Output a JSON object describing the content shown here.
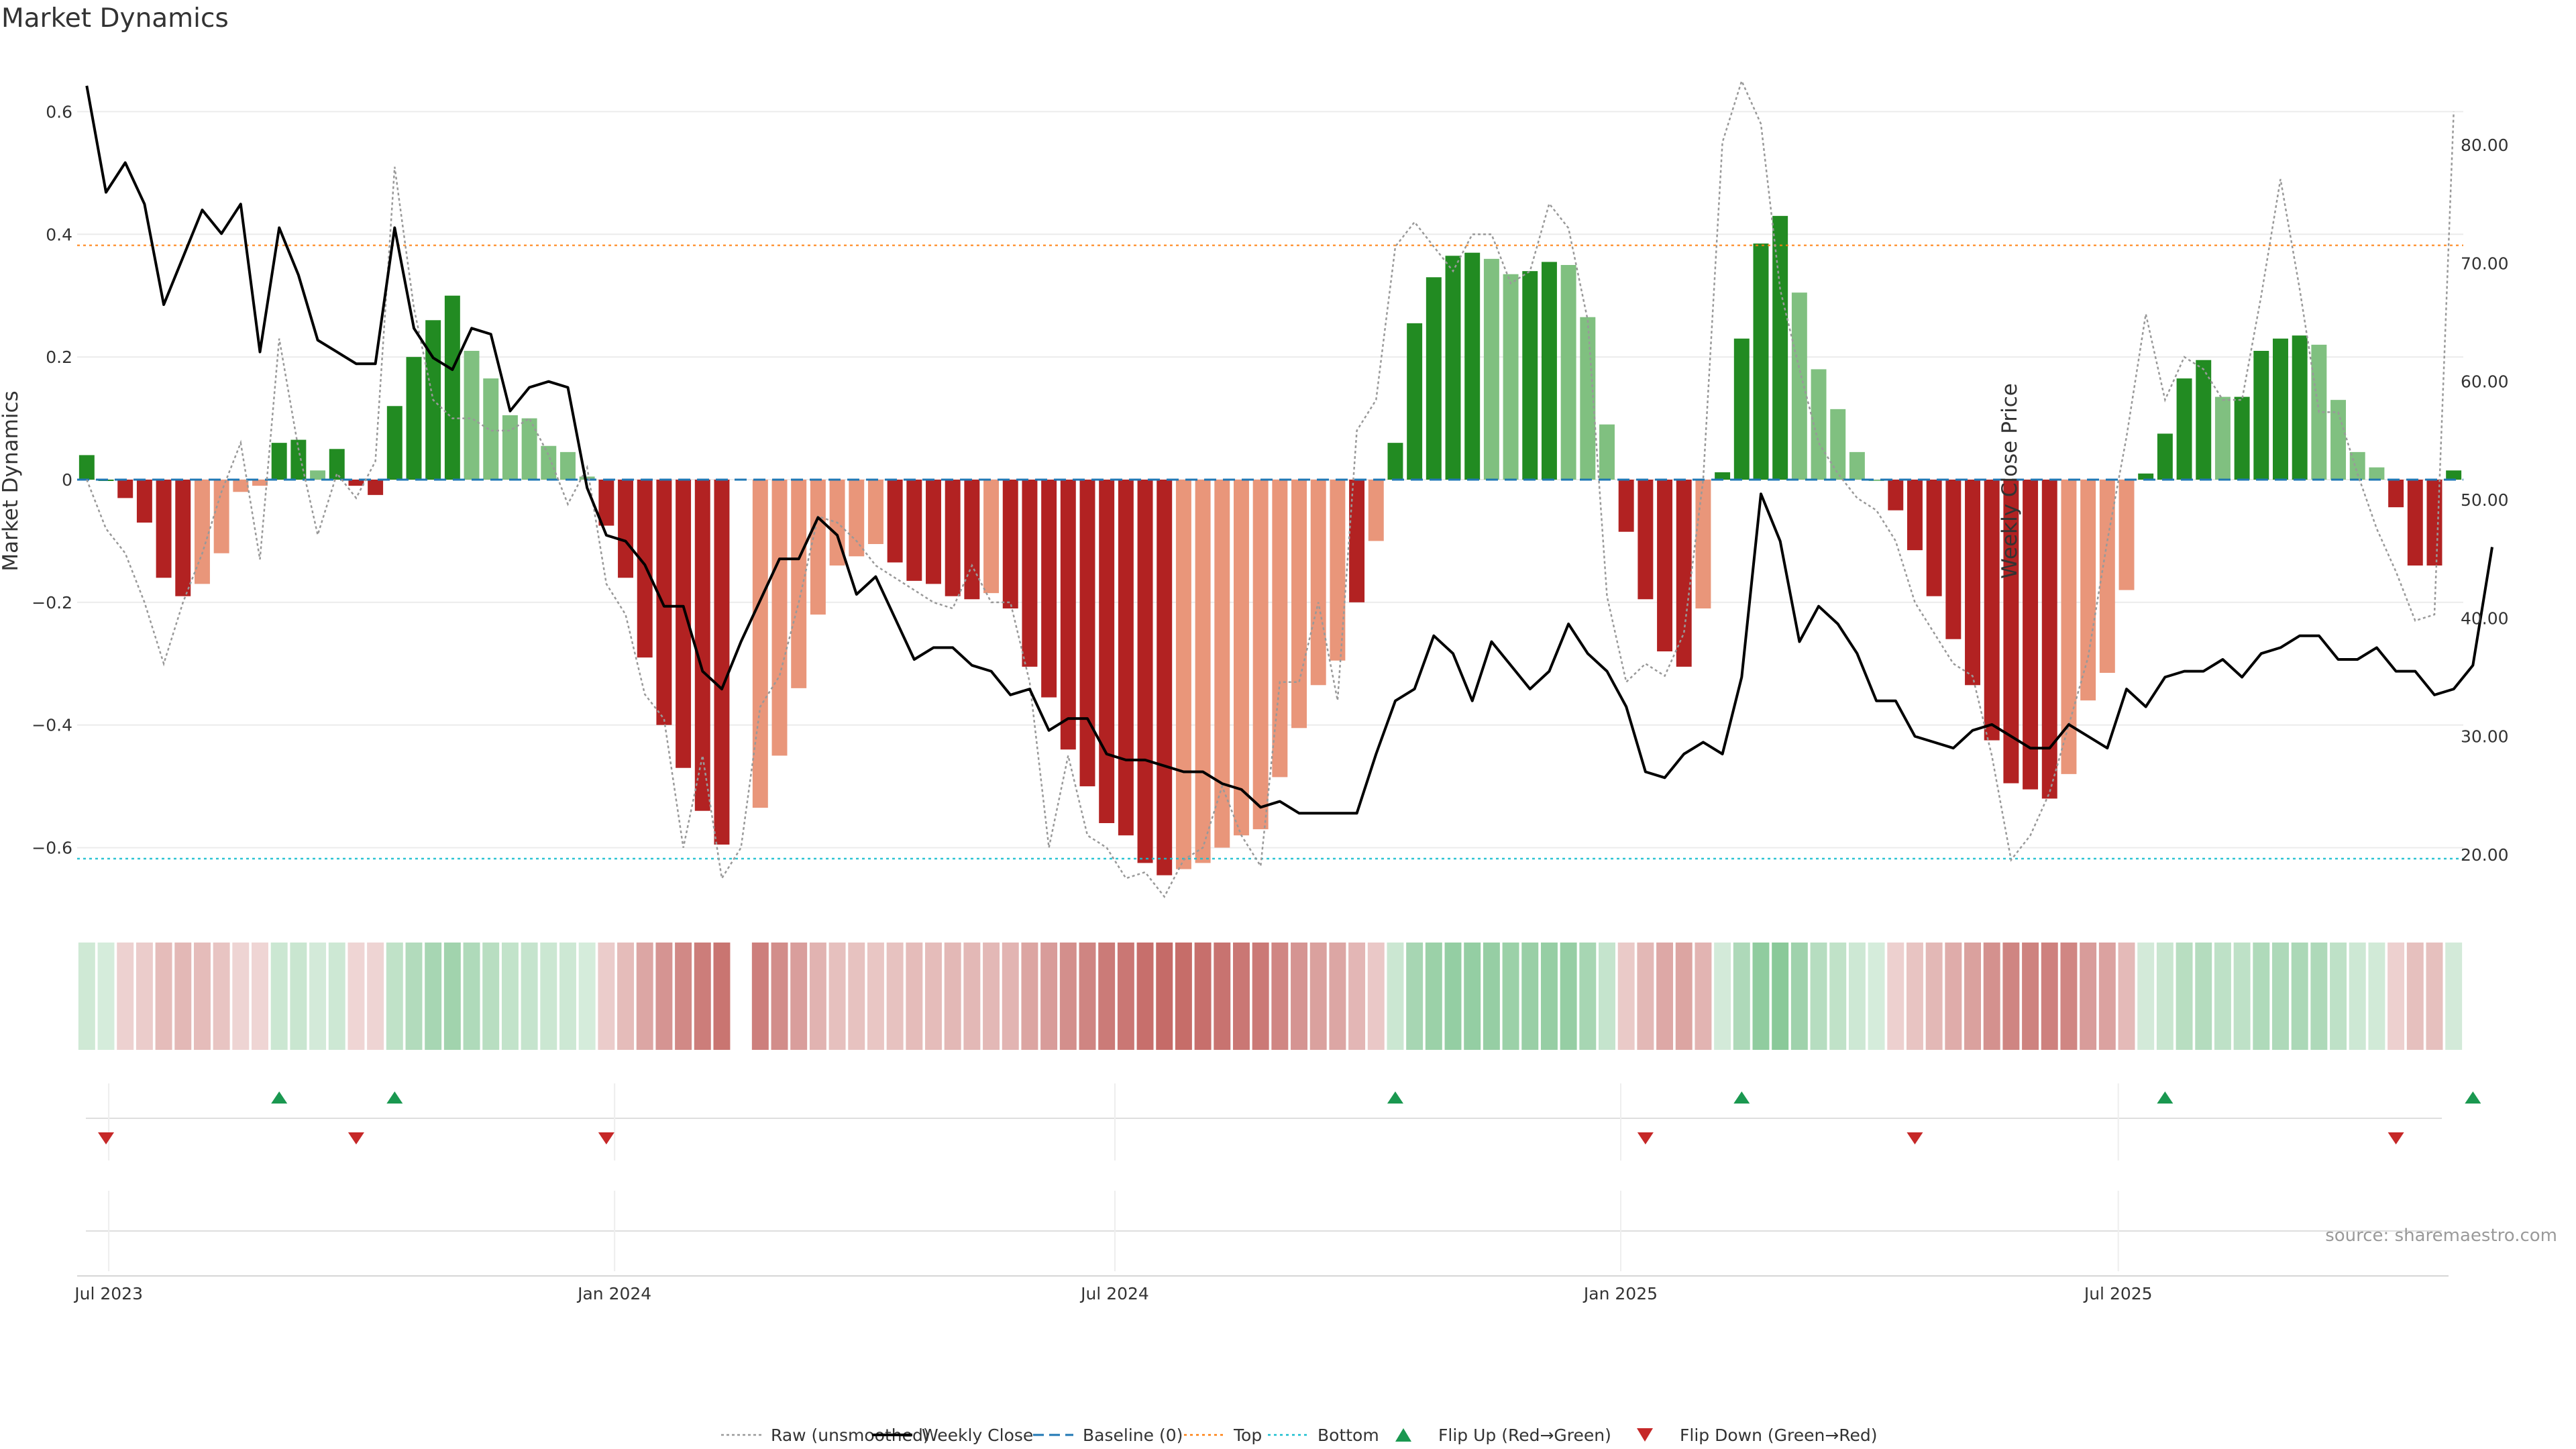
{
  "chart_data": {
    "type": "bar",
    "title": "Market Dynamics",
    "ylabel": "Market Dynamics",
    "y2label": "Weekly Close Price",
    "ylim": [
      -0.7,
      0.7
    ],
    "y2lim": [
      15.4,
      88.0
    ],
    "yticks": [
      0.6,
      0.4,
      0.2,
      0,
      -0.2,
      -0.4,
      -0.6
    ],
    "ytick_labels": [
      "0.6",
      "0.4",
      "0.2",
      "0",
      "−0.2",
      "−0.4",
      "−0.6"
    ],
    "y2ticks": [
      80,
      70,
      60,
      50,
      40,
      30,
      20
    ],
    "y2tick_labels": [
      "80.00",
      "70.00",
      "60.00",
      "50.00",
      "40.00",
      "30.00",
      "20.00"
    ],
    "x_start": "2023-06-23",
    "x_interval_days": 7,
    "xticks": [
      {
        "date": "2023-07-01",
        "label": "Jul 2023"
      },
      {
        "date": "2024-01-01",
        "label": "Jan 2024"
      },
      {
        "date": "2024-07-01",
        "label": "Jul 2024"
      },
      {
        "date": "2025-01-01",
        "label": "Jan 2025"
      },
      {
        "date": "2025-07-01",
        "label": "Jul 2025"
      }
    ],
    "top_threshold": 0.382,
    "bottom_threshold": -0.618,
    "baseline": 0,
    "grid": true,
    "legend_position": "bottom",
    "colors": {
      "strong_up": "#228b22",
      "weak_up": "#80c080",
      "strong_down": "#b22222",
      "weak_down": "#e9967a",
      "weekly_close": "#000000",
      "raw": "#999999",
      "baseline": "#1f77b4",
      "top": "#ff7f0e",
      "bottom": "#17becf",
      "flip_up": "#1a9850",
      "flip_down": "#c62828"
    },
    "bars": [
      0.04,
      0,
      -0.03,
      -0.07,
      -0.16,
      -0.19,
      -0.17,
      -0.12,
      -0.02,
      -0.01,
      0.06,
      0.065,
      0.015,
      0.05,
      -0.01,
      -0.025,
      0.12,
      0.2,
      0.26,
      0.3,
      0.21,
      0.165,
      0.105,
      0.1,
      0.055,
      0.045,
      0.005,
      -0.075,
      -0.16,
      -0.29,
      -0.4,
      -0.47,
      -0.54,
      -0.595,
      null,
      -0.535,
      -0.45,
      -0.34,
      -0.22,
      -0.14,
      -0.125,
      -0.105,
      -0.135,
      -0.165,
      -0.17,
      -0.19,
      -0.195,
      -0.185,
      -0.21,
      -0.305,
      -0.355,
      -0.44,
      -0.5,
      -0.56,
      -0.58,
      -0.625,
      -0.645,
      -0.635,
      -0.625,
      -0.6,
      -0.58,
      -0.57,
      -0.485,
      -0.405,
      -0.335,
      -0.295,
      -0.2,
      -0.1,
      0.06,
      0.255,
      0.33,
      0.365,
      0.37,
      0.36,
      0.335,
      0.34,
      0.355,
      0.35,
      0.265,
      0.09,
      -0.085,
      -0.195,
      -0.28,
      -0.305,
      -0.21,
      0.012,
      0.23,
      0.385,
      0.43,
      0.305,
      0.18,
      0.115,
      0.045,
      0,
      -0.05,
      -0.115,
      -0.19,
      -0.26,
      -0.335,
      -0.425,
      -0.495,
      -0.505,
      -0.52,
      -0.48,
      -0.36,
      -0.315,
      -0.18,
      0.01,
      0.075,
      0.165,
      0.195,
      0.135,
      0.135,
      0.21,
      0.23,
      0.235,
      0.22,
      0.13,
      0.045,
      0.02,
      -0.045,
      -0.14,
      -0.14,
      0.015
    ],
    "bar_strength": [
      "strong",
      "strong",
      "strong",
      "strong",
      "strong",
      "strong",
      "weak",
      "weak",
      "weak",
      "weak",
      "strong",
      "strong",
      "weak",
      "strong",
      "strong",
      "strong",
      "strong",
      "strong",
      "strong",
      "strong",
      "weak",
      "weak",
      "weak",
      "weak",
      "weak",
      "weak",
      "weak",
      "strong",
      "strong",
      "strong",
      "strong",
      "strong",
      "strong",
      "strong",
      null,
      "weak",
      "weak",
      "weak",
      "weak",
      "weak",
      "weak",
      "weak",
      "strong",
      "strong",
      "strong",
      "strong",
      "strong",
      "weak",
      "strong",
      "strong",
      "strong",
      "strong",
      "strong",
      "strong",
      "strong",
      "strong",
      "strong",
      "weak",
      "weak",
      "weak",
      "weak",
      "weak",
      "weak",
      "weak",
      "weak",
      "weak",
      "strong",
      "weak",
      "strong",
      "strong",
      "strong",
      "strong",
      "strong",
      "weak",
      "weak",
      "strong",
      "strong",
      "weak",
      "weak",
      "weak",
      "strong",
      "strong",
      "strong",
      "strong",
      "weak",
      "strong",
      "strong",
      "strong",
      "strong",
      "weak",
      "weak",
      "weak",
      "weak",
      "weak",
      "strong",
      "strong",
      "strong",
      "strong",
      "strong",
      "strong",
      "strong",
      "strong",
      "strong",
      "weak",
      "weak",
      "weak",
      "weak",
      "strong",
      "strong",
      "strong",
      "strong",
      "weak",
      "strong",
      "strong",
      "strong",
      "strong",
      "weak",
      "weak",
      "weak",
      "weak",
      "strong",
      "strong",
      "strong",
      "strong"
    ],
    "weekly_close": [
      85,
      76,
      78.5,
      75,
      66.5,
      70.5,
      74.5,
      72.5,
      75,
      62.5,
      73,
      69,
      63.5,
      62.5,
      61.5,
      61.5,
      73,
      64.5,
      62,
      61,
      64.5,
      64,
      57.5,
      59.5,
      60,
      59.5,
      51,
      47,
      46.5,
      44.5,
      41,
      41,
      35.5,
      34,
      38,
      41.5,
      45,
      45,
      48.5,
      47,
      42,
      43.5,
      40,
      36.5,
      37.5,
      37.5,
      36,
      35.5,
      33.5,
      34,
      30.5,
      31.5,
      31.5,
      28.5,
      28,
      28,
      27.5,
      27,
      27,
      26,
      25.5,
      24,
      24.5,
      23.5,
      23.5,
      23.5,
      23.5,
      28.5,
      33,
      34,
      38.5,
      37,
      33,
      38,
      36,
      34,
      35.5,
      39.5,
      37,
      35.5,
      32.5,
      27,
      26.5,
      28.5,
      29.5,
      28.5,
      35,
      50.5,
      46.5,
      38,
      41,
      39.5,
      37,
      33,
      33,
      30,
      29.5,
      29,
      30.5,
      31,
      30,
      29,
      29,
      31,
      30,
      29,
      34,
      32.5,
      35,
      35.5,
      35.5,
      36.5,
      35,
      37,
      37.5,
      38.5,
      38.5,
      36.5,
      36.5,
      37.5,
      35.5,
      35.5,
      33.5,
      34,
      36,
      46
    ],
    "raw_unsmoothed": [
      0,
      -0.08,
      -0.12,
      -0.2,
      -0.3,
      -0.2,
      -0.12,
      -0.02,
      0.06,
      -0.13,
      0.23,
      0.05,
      -0.09,
      0.01,
      -0.03,
      0.03,
      0.51,
      0.28,
      0.13,
      0.1,
      0.1,
      0.08,
      0.08,
      0.1,
      0.04,
      -0.04,
      0.02,
      -0.17,
      -0.22,
      -0.35,
      -0.39,
      -0.6,
      -0.45,
      -0.65,
      -0.6,
      -0.37,
      -0.32,
      -0.2,
      -0.06,
      -0.07,
      -0.1,
      -0.14,
      -0.16,
      -0.18,
      -0.2,
      -0.21,
      -0.14,
      -0.2,
      -0.2,
      -0.33,
      -0.6,
      -0.45,
      -0.58,
      -0.6,
      -0.65,
      -0.64,
      -0.68,
      -0.62,
      -0.6,
      -0.5,
      -0.58,
      -0.63,
      -0.33,
      -0.33,
      -0.2,
      -0.36,
      0.08,
      0.13,
      0.38,
      0.42,
      0.38,
      0.34,
      0.4,
      0.4,
      0.32,
      0.34,
      0.45,
      0.41,
      0.26,
      -0.19,
      -0.33,
      -0.3,
      -0.32,
      -0.25,
      0.0,
      0.55,
      0.65,
      0.58,
      0.31,
      0.18,
      0.06,
      0.01,
      -0.03,
      -0.05,
      -0.1,
      -0.2,
      -0.25,
      -0.3,
      -0.32,
      -0.45,
      -0.62,
      -0.58,
      -0.51,
      -0.4,
      -0.29,
      -0.1,
      0.07,
      0.27,
      0.13,
      0.2,
      0.18,
      0.13,
      0.13,
      0.3,
      0.49,
      0.31,
      0.11,
      0.11,
      0.01,
      -0.08,
      -0.15,
      -0.23,
      -0.22,
      0.6
    ],
    "gap_index": 34,
    "flips_up": [
      10,
      16,
      68,
      86,
      108,
      124
    ],
    "flips_down": [
      1,
      14,
      27,
      81,
      95,
      120
    ],
    "legend": [
      {
        "label": "Raw (unsmoothed)",
        "style": "dotted-line"
      },
      {
        "label": "Weekly Close",
        "style": "solid-line"
      },
      {
        "label": "Baseline (0)",
        "style": "dashed-line"
      },
      {
        "label": "Top",
        "style": "dotted-line"
      },
      {
        "label": "Bottom",
        "style": "dotted-line"
      },
      {
        "label": "Flip Up (Red→Green)",
        "style": "triangle-up"
      },
      {
        "label": "Flip Down (Green→Red)",
        "style": "triangle-down"
      }
    ],
    "source": "source: sharemaestro.com"
  }
}
